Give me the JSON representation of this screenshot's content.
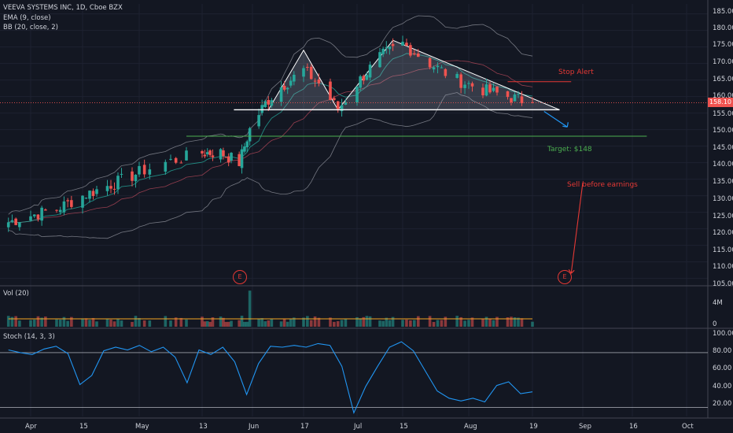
{
  "header": {
    "title": "VEEVA SYSTEMS INC, 1D, Cboe BZX",
    "indicators": [
      "EMA (9, close)",
      "BB (20, close, 2)"
    ]
  },
  "price_axis": {
    "ticks": [
      "185.00",
      "180.00",
      "175.00",
      "170.00",
      "165.00",
      "160.00",
      "155.00",
      "150.00",
      "145.00",
      "140.00",
      "135.00",
      "130.00",
      "125.00",
      "120.00",
      "115.00",
      "110.00",
      "105.00"
    ],
    "last_price": "158.10"
  },
  "time_axis": {
    "ticks": [
      "Apr",
      "15",
      "May",
      "13",
      "Jun",
      "17",
      "Jul",
      "15",
      "Aug",
      "19",
      "Sep",
      "16",
      "Oct"
    ]
  },
  "annotations": {
    "stop_alert": "Stop Alert",
    "target": "Target: $148",
    "sell": "Sell before earnings",
    "earnings_marker": "E"
  },
  "volume_pane": {
    "title": "Vol (20)",
    "ticks": [
      "4M",
      "0"
    ]
  },
  "stoch_pane": {
    "title": "Stoch (14, 3, 3)",
    "ticks": [
      "100.00",
      "80.00",
      "60.00",
      "40.00",
      "20.00"
    ]
  },
  "colors": {
    "background": "#131722",
    "up": "#26a69a",
    "down": "#ef5350",
    "ema": "#26a69a",
    "bollinger": "#9598a1",
    "stoch": "#2196f3",
    "neckline": "#ffffff",
    "target_line": "#4caf50",
    "annotation_red": "#e53935"
  },
  "chart_data": [
    {
      "type": "candlestick",
      "title": "VEEVA SYSTEMS INC, 1D, Cboe BZX",
      "ylim": [
        103,
        188
      ],
      "close_path": [
        [
          "Mar 26",
          122
        ],
        [
          "Apr 1",
          124
        ],
        [
          "Apr 8",
          126
        ],
        [
          "Apr 15",
          130
        ],
        [
          "Apr 22",
          133
        ],
        [
          "Apr 29",
          136
        ],
        [
          "May 6",
          140
        ],
        [
          "May 13",
          143
        ],
        [
          "May 20",
          143
        ],
        [
          "May 27",
          140
        ],
        [
          "May 31",
          150
        ],
        [
          "Jun 5",
          158
        ],
        [
          "Jun 10",
          163
        ],
        [
          "Jun 17",
          168
        ],
        [
          "Jun 21",
          164
        ],
        [
          "Jun 26",
          156
        ],
        [
          "Jul 1",
          164
        ],
        [
          "Jul 8",
          172
        ],
        [
          "Jul 15",
          176
        ],
        [
          "Jul 22",
          170
        ],
        [
          "Jul 29",
          165
        ],
        [
          "Aug 5",
          162
        ],
        [
          "Aug 12",
          160
        ],
        [
          "Aug 19",
          158.1
        ]
      ],
      "last_price": 158.1,
      "neckline": 156,
      "target": 148,
      "stop_alert": 164.5,
      "earnings_dates": [
        "May 30",
        "Aug 29"
      ]
    },
    {
      "type": "bar",
      "title": "Vol (20)",
      "ylim": [
        0,
        6
      ],
      "unit": "M",
      "avg_volume": 1.2,
      "spike": {
        "date": "May 31",
        "value": 5.5
      }
    },
    {
      "type": "line",
      "title": "Stoch (14, 3, 3)",
      "ylim": [
        10,
        105
      ],
      "levels": [
        80,
        20
      ],
      "values": [
        83,
        80,
        78,
        84,
        87,
        79,
        45,
        55,
        82,
        86,
        83,
        88,
        81,
        86,
        75,
        47,
        83,
        78,
        86,
        70,
        34,
        68,
        87,
        86,
        88,
        86,
        90,
        88,
        65,
        14,
        43,
        65,
        86,
        92,
        82,
        60,
        38,
        30,
        27,
        30,
        26,
        44,
        48,
        35,
        37
      ]
    }
  ]
}
